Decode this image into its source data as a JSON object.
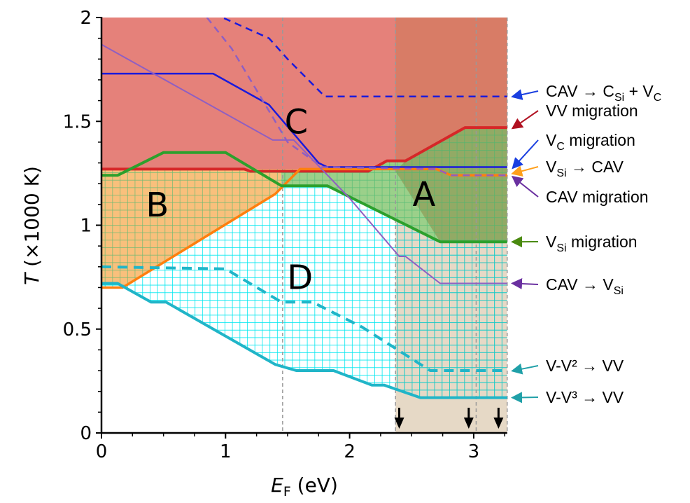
{
  "chart_data": {
    "type": "line",
    "title": "",
    "xlabel": "E_F (eV)",
    "xlabel_main": "E",
    "xlabel_sub": "F",
    "xlabel_unit": " (eV)",
    "ylabel": "T (×1000 K)",
    "ylabel_main": "T",
    "ylabel_unit": " (×1000 K)",
    "xlim": [
      0,
      3.27
    ],
    "ylim": [
      0,
      2
    ],
    "x_ticks": [
      0,
      1,
      2,
      3
    ],
    "x_tick_labels": [
      "0",
      "1",
      "2",
      "3"
    ],
    "y_ticks": [
      0,
      0.5,
      1,
      1.5,
      2
    ],
    "y_tick_labels": [
      "0",
      "0.5",
      "1",
      "1.5",
      "2"
    ],
    "vertical_dashed_lines": [
      1.46,
      2.37,
      3.02,
      3.27
    ],
    "down_arrows_at": [
      2.4,
      2.96,
      3.2
    ],
    "regions": [
      {
        "name": "C",
        "label_at": [
          1.57,
          1.5
        ],
        "color": "#e5817a"
      },
      {
        "name": "A",
        "label_at": [
          2.6,
          1.15
        ],
        "color": "#9fae6e"
      },
      {
        "name": "B",
        "label_at": [
          0.45,
          1.1
        ],
        "color": "#f9c07c"
      },
      {
        "name": "D",
        "label_at": [
          1.6,
          0.75
        ],
        "color": "#e6ffff"
      }
    ],
    "series": [
      {
        "name": "CAV → C_Si + V_C",
        "label_parts": [
          "CAV → C",
          "Si",
          " + V",
          "C"
        ],
        "color": "#1a1adc",
        "style": "dashed",
        "width": 2.5,
        "points": [
          [
            0.9,
            2.02
          ],
          [
            1.35,
            1.9
          ],
          [
            1.5,
            1.8
          ],
          [
            1.8,
            1.62
          ],
          [
            3.27,
            1.62
          ]
        ]
      },
      {
        "name": "VV migration",
        "label_parts": [
          "VV migration"
        ],
        "color": "#d62728",
        "style": "solid",
        "width": 4,
        "points": [
          [
            0,
            1.27
          ],
          [
            1.15,
            1.27
          ],
          [
            1.2,
            1.26
          ],
          [
            2.15,
            1.26
          ],
          [
            2.3,
            1.31
          ],
          [
            2.45,
            1.31
          ],
          [
            2.93,
            1.47
          ],
          [
            3.27,
            1.47
          ]
        ]
      },
      {
        "name": "V_C migration",
        "label_parts": [
          "V",
          "C",
          " migration"
        ],
        "color": "#1a1adc",
        "style": "solid",
        "width": 2.5,
        "points": [
          [
            0,
            1.73
          ],
          [
            0.9,
            1.73
          ],
          [
            1.35,
            1.58
          ],
          [
            1.75,
            1.3
          ],
          [
            1.82,
            1.28
          ],
          [
            3.27,
            1.28
          ]
        ]
      },
      {
        "name": "V_Si → CAV",
        "label_parts": [
          "V",
          "Si",
          " → CAV"
        ],
        "color": "#ff7f0e",
        "style": "solid",
        "width": 3.5,
        "points": [
          [
            0,
            0.7
          ],
          [
            0.17,
            0.7
          ],
          [
            1.4,
            1.15
          ],
          [
            1.6,
            1.27
          ],
          [
            2.7,
            1.27
          ],
          [
            2.82,
            1.24
          ],
          [
            3.27,
            1.24
          ]
        ]
      },
      {
        "name": "CAV migration",
        "label_parts": [
          "CAV migration"
        ],
        "color": "#8f5fc2",
        "style": "dashed",
        "width": 2.5,
        "points": [
          [
            0.85,
            2.0
          ],
          [
            1.05,
            1.85
          ],
          [
            1.5,
            1.4
          ],
          [
            1.78,
            1.28
          ],
          [
            2.7,
            1.27
          ],
          [
            2.82,
            1.24
          ],
          [
            3.27,
            1.24
          ]
        ]
      },
      {
        "name": "V_Si migration",
        "label_parts": [
          "V",
          "Si",
          " migration"
        ],
        "color": "#2ca02c",
        "style": "solid",
        "width": 4,
        "points": [
          [
            0,
            1.24
          ],
          [
            0.13,
            1.24
          ],
          [
            0.5,
            1.35
          ],
          [
            1.0,
            1.35
          ],
          [
            1.45,
            1.19
          ],
          [
            1.82,
            1.19
          ],
          [
            2.73,
            0.92
          ],
          [
            3.27,
            0.92
          ]
        ]
      },
      {
        "name": "CAV → V_Si",
        "label_parts": [
          "CAV → V",
          "Si"
        ],
        "color": "#8f5fc2",
        "style": "solid",
        "width": 2,
        "points": [
          [
            0,
            1.87
          ],
          [
            1.38,
            1.41
          ],
          [
            1.55,
            1.41
          ],
          [
            2.0,
            1.13
          ],
          [
            2.4,
            0.85
          ],
          [
            2.45,
            0.85
          ],
          [
            2.73,
            0.72
          ],
          [
            3.27,
            0.72
          ]
        ]
      },
      {
        "name": "V-V² → VV",
        "label_parts": [
          "V-V² → VV"
        ],
        "color": "#20b5c8",
        "style": "dashed",
        "width": 4,
        "points": [
          [
            0,
            0.8
          ],
          [
            1.0,
            0.79
          ],
          [
            1.45,
            0.63
          ],
          [
            1.7,
            0.63
          ],
          [
            2.1,
            0.51
          ],
          [
            2.65,
            0.3
          ],
          [
            3.27,
            0.3
          ]
        ]
      },
      {
        "name": "V-V³ → VV",
        "label_parts": [
          "V-V³ → VV"
        ],
        "color": "#20b5c8",
        "style": "solid",
        "width": 4,
        "points": [
          [
            0,
            0.72
          ],
          [
            0.13,
            0.72
          ],
          [
            0.4,
            0.63
          ],
          [
            0.52,
            0.63
          ],
          [
            1.4,
            0.33
          ],
          [
            1.57,
            0.3
          ],
          [
            1.87,
            0.3
          ],
          [
            2.18,
            0.23
          ],
          [
            2.28,
            0.23
          ],
          [
            2.57,
            0.17
          ],
          [
            3.27,
            0.17
          ]
        ]
      }
    ],
    "annotation_arrow_colors": [
      "#1a3fe0",
      "#b01020",
      "#1a3fe0",
      "#ff9f1a",
      "#6a30a0",
      "#4a8a10",
      "#6a30a0",
      "#20a0a8",
      "#20a0a8"
    ]
  }
}
